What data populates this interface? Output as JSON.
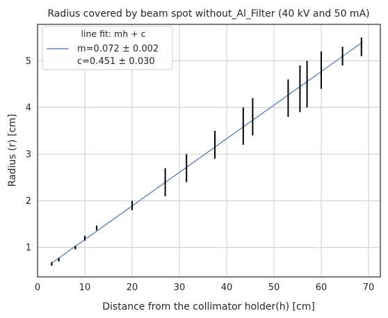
{
  "chart_data": {
    "type": "scatter",
    "title": "Radius covered by beam spot without_Al_Filter (40 kV and 50 mA)",
    "xlabel": "Distance from the  collimator holder(h) [cm]",
    "ylabel": "Radius (r) [cm]",
    "xlim": [
      0,
      72.5
    ],
    "ylim": [
      0.37,
      5.78
    ],
    "xticks": [
      "0",
      "10",
      "20",
      "30",
      "40",
      "50",
      "60",
      "70"
    ],
    "yticks": [
      "1",
      "2",
      "3",
      "4",
      "5"
    ],
    "grid": true,
    "legend": {
      "placement": "top-left",
      "title": "line fit: mh + c",
      "entries": [
        " m=0.072 ± 0.002",
        "c=0.451 ± 0.030"
      ]
    },
    "fit_line": {
      "m": 0.072,
      "c": 0.451,
      "x_range": [
        3,
        68.8
      ],
      "color": "#4c72b0"
    },
    "points": [
      {
        "x": 3,
        "y": 0.65,
        "err": 0.04
      },
      {
        "x": 4.5,
        "y": 0.74,
        "err": 0.04
      },
      {
        "x": 8,
        "y": 1.0,
        "err": 0.04
      },
      {
        "x": 10,
        "y": 1.2,
        "err": 0.05
      },
      {
        "x": 12.5,
        "y": 1.42,
        "err": 0.05
      },
      {
        "x": 20,
        "y": 1.9,
        "err": 0.1
      },
      {
        "x": 27,
        "y": 2.4,
        "err": 0.3
      },
      {
        "x": 31.5,
        "y": 2.7,
        "err": 0.3
      },
      {
        "x": 37.5,
        "y": 3.2,
        "err": 0.3
      },
      {
        "x": 43.5,
        "y": 3.6,
        "err": 0.4
      },
      {
        "x": 45.5,
        "y": 3.8,
        "err": 0.4
      },
      {
        "x": 53,
        "y": 4.2,
        "err": 0.4
      },
      {
        "x": 55.5,
        "y": 4.4,
        "err": 0.5
      },
      {
        "x": 57,
        "y": 4.5,
        "err": 0.5
      },
      {
        "x": 60,
        "y": 4.8,
        "err": 0.4
      },
      {
        "x": 64.5,
        "y": 5.1,
        "err": 0.2
      },
      {
        "x": 68.5,
        "y": 5.3,
        "err": 0.2
      }
    ]
  }
}
